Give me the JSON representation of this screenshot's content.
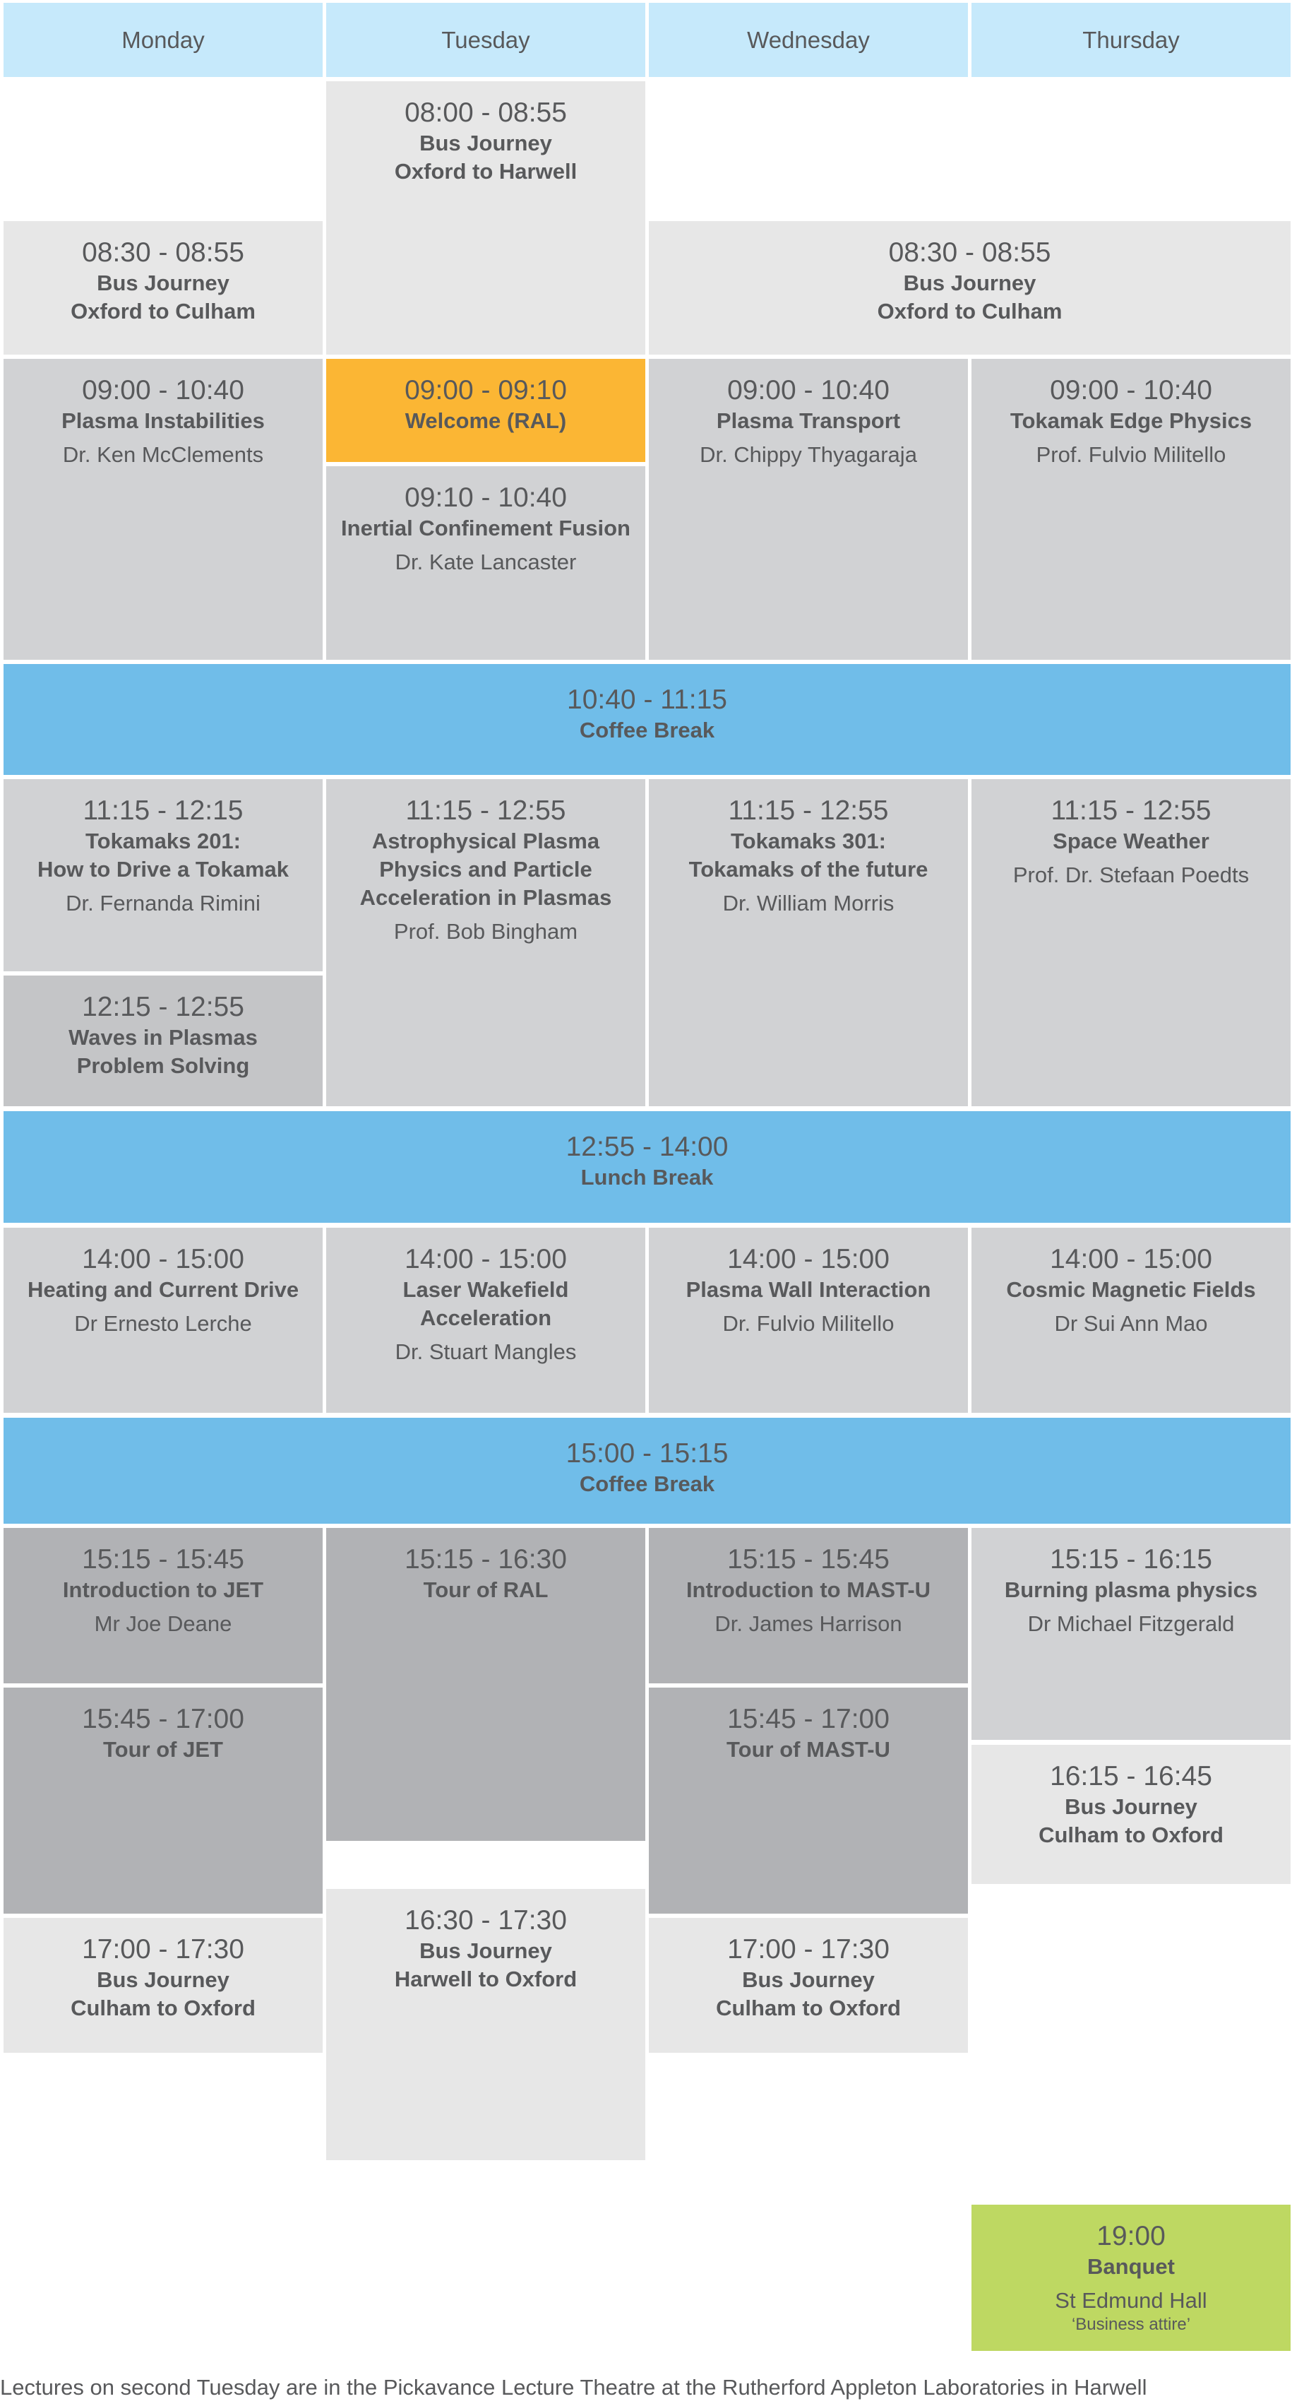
{
  "days": [
    "Monday",
    "Tuesday",
    "Wednesday",
    "Thursday"
  ],
  "colors": {
    "header": "#c6e9fb",
    "bus": "#e7e7e7",
    "lecture": "#d1d2d4",
    "tour": "#b1b2b5",
    "welcome": "#fbb634",
    "break": "#70bde9",
    "banquet": "#bed862",
    "text": "#58595b"
  },
  "events": [
    {
      "day": "Tuesday",
      "kind": "bus",
      "time": "08:00 - 08:55",
      "title": "Bus Journey\nOxford to Harwell"
    },
    {
      "day": "Monday",
      "kind": "bus",
      "time": "08:30 - 08:55",
      "title": "Bus Journey\nOxford to Culham"
    },
    {
      "day": "Wednesday-Thursday",
      "kind": "bus",
      "time": "08:30 - 08:55",
      "title": "Bus Journey\nOxford to Culham"
    },
    {
      "day": "Monday",
      "kind": "lecture",
      "time": "09:00 - 10:40",
      "title": "Plasma Instabilities",
      "speaker": "Dr. Ken McClements"
    },
    {
      "day": "Tuesday",
      "kind": "welcome",
      "time": "09:00 - 09:10",
      "title": "Welcome (RAL)"
    },
    {
      "day": "Tuesday",
      "kind": "lecture",
      "time": "09:10 - 10:40",
      "title": "Inertial Confinement Fusion",
      "speaker": "Dr. Kate Lancaster"
    },
    {
      "day": "Wednesday",
      "kind": "lecture",
      "time": "09:00 - 10:40",
      "title": "Plasma Transport",
      "speaker": "Dr. Chippy Thyagaraja"
    },
    {
      "day": "Thursday",
      "kind": "lecture",
      "time": "09:00 - 10:40",
      "title": "Tokamak Edge Physics",
      "speaker": "Prof. Fulvio Militello"
    },
    {
      "day": "all",
      "kind": "break",
      "time": "10:40 - 11:15",
      "title": "Coffee Break"
    },
    {
      "day": "Monday",
      "kind": "lecture",
      "time": "11:15 - 12:15",
      "title": "Tokamaks 201:\nHow to Drive a Tokamak",
      "speaker": "Dr. Fernanda Rimini"
    },
    {
      "day": "Monday",
      "kind": "lecture2",
      "time": "12:15 - 12:55",
      "title": "Waves in Plasmas\nProblem Solving"
    },
    {
      "day": "Tuesday",
      "kind": "lecture",
      "time": "11:15 - 12:55",
      "title": "Astrophysical Plasma\nPhysics and Particle\nAcceleration in Plasmas",
      "speaker": "Prof. Bob Bingham"
    },
    {
      "day": "Wednesday",
      "kind": "lecture",
      "time": "11:15 - 12:55",
      "title": "Tokamaks 301:\nTokamaks of the future",
      "speaker": "Dr. William Morris"
    },
    {
      "day": "Thursday",
      "kind": "lecture",
      "time": "11:15 - 12:55",
      "title": "Space Weather",
      "speaker": "Prof. Dr. Stefaan Poedts"
    },
    {
      "day": "all",
      "kind": "break",
      "time": "12:55 - 14:00",
      "title": "Lunch Break"
    },
    {
      "day": "Monday",
      "kind": "lecture",
      "time": "14:00 - 15:00",
      "title": "Heating and Current Drive",
      "speaker": "Dr Ernesto Lerche"
    },
    {
      "day": "Tuesday",
      "kind": "lecture",
      "time": "14:00 - 15:00",
      "title": "Laser Wakefield\nAcceleration",
      "speaker": "Dr. Stuart Mangles"
    },
    {
      "day": "Wednesday",
      "kind": "lecture",
      "time": "14:00 - 15:00",
      "title": "Plasma Wall Interaction",
      "speaker": "Dr. Fulvio Militello"
    },
    {
      "day": "Thursday",
      "kind": "lecture",
      "time": "14:00 - 15:00",
      "title": "Cosmic Magnetic Fields",
      "speaker": "Dr Sui Ann Mao"
    },
    {
      "day": "all",
      "kind": "break",
      "time": "15:00 - 15:15",
      "title": "Coffee Break"
    },
    {
      "day": "Monday",
      "kind": "tour",
      "time": "15:15 - 15:45",
      "title": "Introduction to JET",
      "speaker": "Mr Joe Deane"
    },
    {
      "day": "Monday",
      "kind": "tour",
      "time": "15:45 - 17:00",
      "title": "Tour of JET"
    },
    {
      "day": "Monday",
      "kind": "bus",
      "time": "17:00 - 17:30",
      "title": "Bus Journey\nCulham to Oxford"
    },
    {
      "day": "Tuesday",
      "kind": "tour",
      "time": "15:15 - 16:30",
      "title": "Tour of RAL"
    },
    {
      "day": "Tuesday",
      "kind": "bus",
      "time": "16:30 - 17:30",
      "title": "Bus Journey\nHarwell to Oxford"
    },
    {
      "day": "Wednesday",
      "kind": "tour",
      "time": "15:15 - 15:45",
      "title": "Introduction to MAST-U",
      "speaker": "Dr. James Harrison"
    },
    {
      "day": "Wednesday",
      "kind": "tour",
      "time": "15:45 - 17:00",
      "title": "Tour of MAST-U"
    },
    {
      "day": "Wednesday",
      "kind": "bus",
      "time": "17:00 - 17:30",
      "title": "Bus Journey\nCulham to Oxford"
    },
    {
      "day": "Thursday",
      "kind": "lecture",
      "time": "15:15 - 16:15",
      "title": "Burning plasma physics",
      "speaker": "Dr Michael Fitzgerald"
    },
    {
      "day": "Thursday",
      "kind": "bus",
      "time": "16:15 - 16:45",
      "title": "Bus Journey\nCulham to Oxford"
    },
    {
      "day": "Thursday",
      "kind": "banquet",
      "time": "19:00",
      "title": "Banquet",
      "speaker": "St Edmund Hall",
      "note": "‘Business attire’"
    }
  ],
  "footer": "Lectures on second Tuesday are in the Pickavance Lecture Theatre at the Rutherford Appleton Laboratories in Harwell"
}
